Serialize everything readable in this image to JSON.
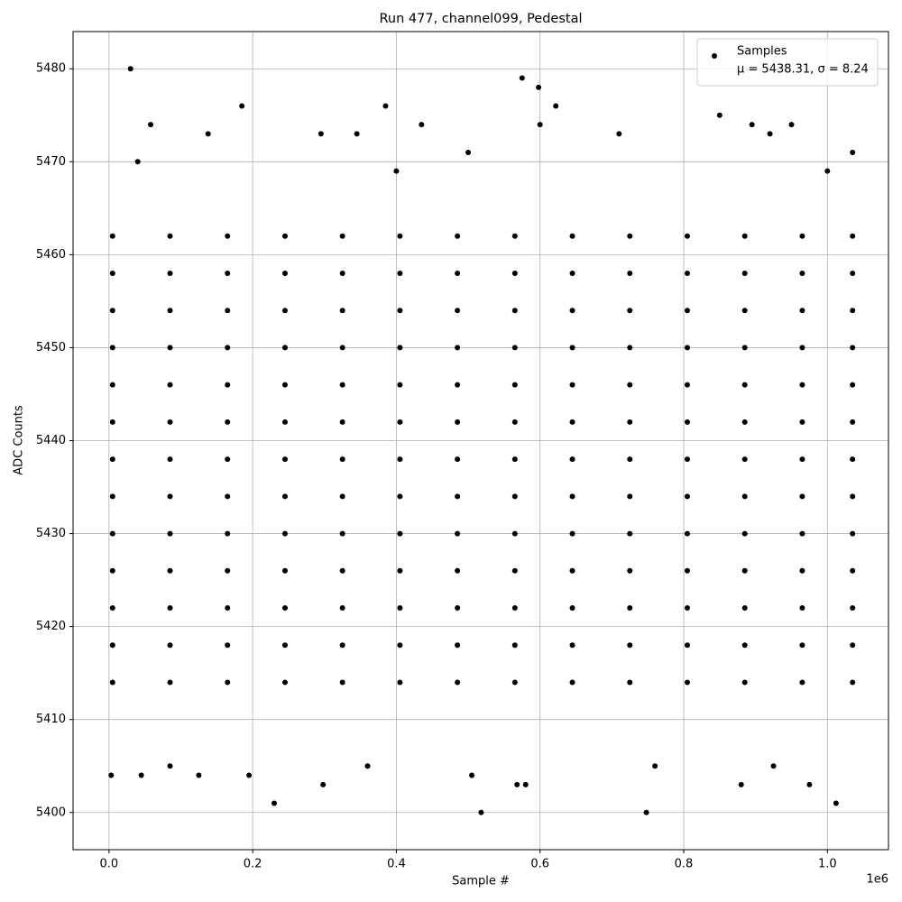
{
  "chart_data": {
    "type": "scatter",
    "title": "Run 477, channel099, Pedestal",
    "x_label": "Sample #",
    "y_label": "ADC Counts",
    "x_offset_label": "1e6",
    "xlim": [
      -50000,
      1085000
    ],
    "ylim": [
      5396,
      5484
    ],
    "xticks": [
      {
        "value": 0,
        "label": "0.0"
      },
      {
        "value": 200000,
        "label": "0.2"
      },
      {
        "value": 400000,
        "label": "0.4"
      },
      {
        "value": 600000,
        "label": "0.6"
      },
      {
        "value": 800000,
        "label": "0.8"
      },
      {
        "value": 1000000,
        "label": "1.0"
      }
    ],
    "yticks": [
      5400,
      5410,
      5420,
      5430,
      5440,
      5450,
      5460,
      5470,
      5480
    ],
    "grid": true,
    "legend": "upper right",
    "series": [
      {
        "name": "Samples",
        "legend_note": "μ = 5438.31, σ = 8.24",
        "color": "#000000",
        "x": [
          5000,
          85000,
          165000,
          245000,
          325000,
          405000,
          485000,
          565000,
          645000,
          725000,
          805000,
          885000,
          965000,
          1035000,
          5000,
          85000,
          165000,
          245000,
          325000,
          405000,
          485000,
          565000,
          645000,
          725000,
          805000,
          885000,
          965000,
          1035000,
          5000,
          85000,
          165000,
          245000,
          325000,
          405000,
          485000,
          565000,
          645000,
          725000,
          805000,
          885000,
          965000,
          1035000,
          5000,
          85000,
          165000,
          245000,
          325000,
          405000,
          485000,
          565000,
          645000,
          725000,
          805000,
          885000,
          965000,
          1035000,
          5000,
          85000,
          165000,
          245000,
          325000,
          405000,
          485000,
          565000,
          645000,
          725000,
          805000,
          885000,
          965000,
          1035000,
          5000,
          85000,
          165000,
          245000,
          325000,
          405000,
          485000,
          565000,
          645000,
          725000,
          805000,
          885000,
          965000,
          1035000,
          5000,
          85000,
          165000,
          245000,
          325000,
          405000,
          485000,
          565000,
          645000,
          725000,
          805000,
          885000,
          965000,
          1035000,
          5000,
          85000,
          165000,
          245000,
          325000,
          405000,
          485000,
          565000,
          645000,
          725000,
          805000,
          885000,
          965000,
          1035000,
          5000,
          85000,
          165000,
          245000,
          325000,
          405000,
          485000,
          565000,
          645000,
          725000,
          805000,
          885000,
          965000,
          1035000,
          5000,
          85000,
          165000,
          245000,
          325000,
          405000,
          485000,
          565000,
          645000,
          725000,
          805000,
          885000,
          965000,
          1035000,
          5000,
          85000,
          165000,
          245000,
          325000,
          405000,
          485000,
          565000,
          645000,
          725000,
          805000,
          885000,
          965000,
          1035000,
          5000,
          85000,
          165000,
          245000,
          325000,
          405000,
          485000,
          565000,
          645000,
          725000,
          805000,
          885000,
          965000,
          1035000,
          5000,
          85000,
          165000,
          245000,
          325000,
          405000,
          485000,
          565000,
          645000,
          725000,
          805000,
          885000,
          965000,
          1035000,
          30000,
          575000,
          598000,
          385000,
          185000,
          622000,
          850000,
          58000,
          435000,
          600000,
          895000,
          950000,
          138000,
          345000,
          295000,
          710000,
          920000,
          3000,
          45000,
          125000,
          195000,
          230000,
          298000,
          518000,
          748000,
          1012000,
          880000,
          975000,
          568000,
          580000,
          505000,
          85000,
          360000,
          760000,
          925000,
          1035000,
          1000000,
          400000,
          40000,
          500000
        ],
        "values": [
          5414,
          5414,
          5414,
          5414,
          5414,
          5414,
          5414,
          5414,
          5414,
          5414,
          5414,
          5414,
          5414,
          5414,
          5418,
          5418,
          5418,
          5418,
          5418,
          5418,
          5418,
          5418,
          5418,
          5418,
          5418,
          5418,
          5418,
          5418,
          5422,
          5422,
          5422,
          5422,
          5422,
          5422,
          5422,
          5422,
          5422,
          5422,
          5422,
          5422,
          5422,
          5422,
          5426,
          5426,
          5426,
          5426,
          5426,
          5426,
          5426,
          5426,
          5426,
          5426,
          5426,
          5426,
          5426,
          5426,
          5430,
          5430,
          5430,
          5430,
          5430,
          5430,
          5430,
          5430,
          5430,
          5430,
          5430,
          5430,
          5430,
          5430,
          5434,
          5434,
          5434,
          5434,
          5434,
          5434,
          5434,
          5434,
          5434,
          5434,
          5434,
          5434,
          5434,
          5434,
          5438,
          5438,
          5438,
          5438,
          5438,
          5438,
          5438,
          5438,
          5438,
          5438,
          5438,
          5438,
          5438,
          5438,
          5442,
          5442,
          5442,
          5442,
          5442,
          5442,
          5442,
          5442,
          5442,
          5442,
          5442,
          5442,
          5442,
          5442,
          5446,
          5446,
          5446,
          5446,
          5446,
          5446,
          5446,
          5446,
          5446,
          5446,
          5446,
          5446,
          5446,
          5446,
          5450,
          5450,
          5450,
          5450,
          5450,
          5450,
          5450,
          5450,
          5450,
          5450,
          5450,
          5450,
          5450,
          5450,
          5454,
          5454,
          5454,
          5454,
          5454,
          5454,
          5454,
          5454,
          5454,
          5454,
          5454,
          5454,
          5454,
          5454,
          5458,
          5458,
          5458,
          5458,
          5458,
          5458,
          5458,
          5458,
          5458,
          5458,
          5458,
          5458,
          5458,
          5458,
          5462,
          5462,
          5462,
          5462,
          5462,
          5462,
          5462,
          5462,
          5462,
          5462,
          5462,
          5462,
          5462,
          5462,
          5480,
          5479,
          5478,
          5476,
          5476,
          5476,
          5475,
          5474,
          5474,
          5474,
          5474,
          5474,
          5473,
          5473,
          5473,
          5473,
          5473,
          5404,
          5404,
          5404,
          5404,
          5401,
          5403,
          5400,
          5400,
          5401,
          5403,
          5403,
          5403,
          5403,
          5404,
          5405,
          5405,
          5405,
          5405,
          5471,
          5469,
          5469,
          5470,
          5471
        ]
      }
    ]
  }
}
